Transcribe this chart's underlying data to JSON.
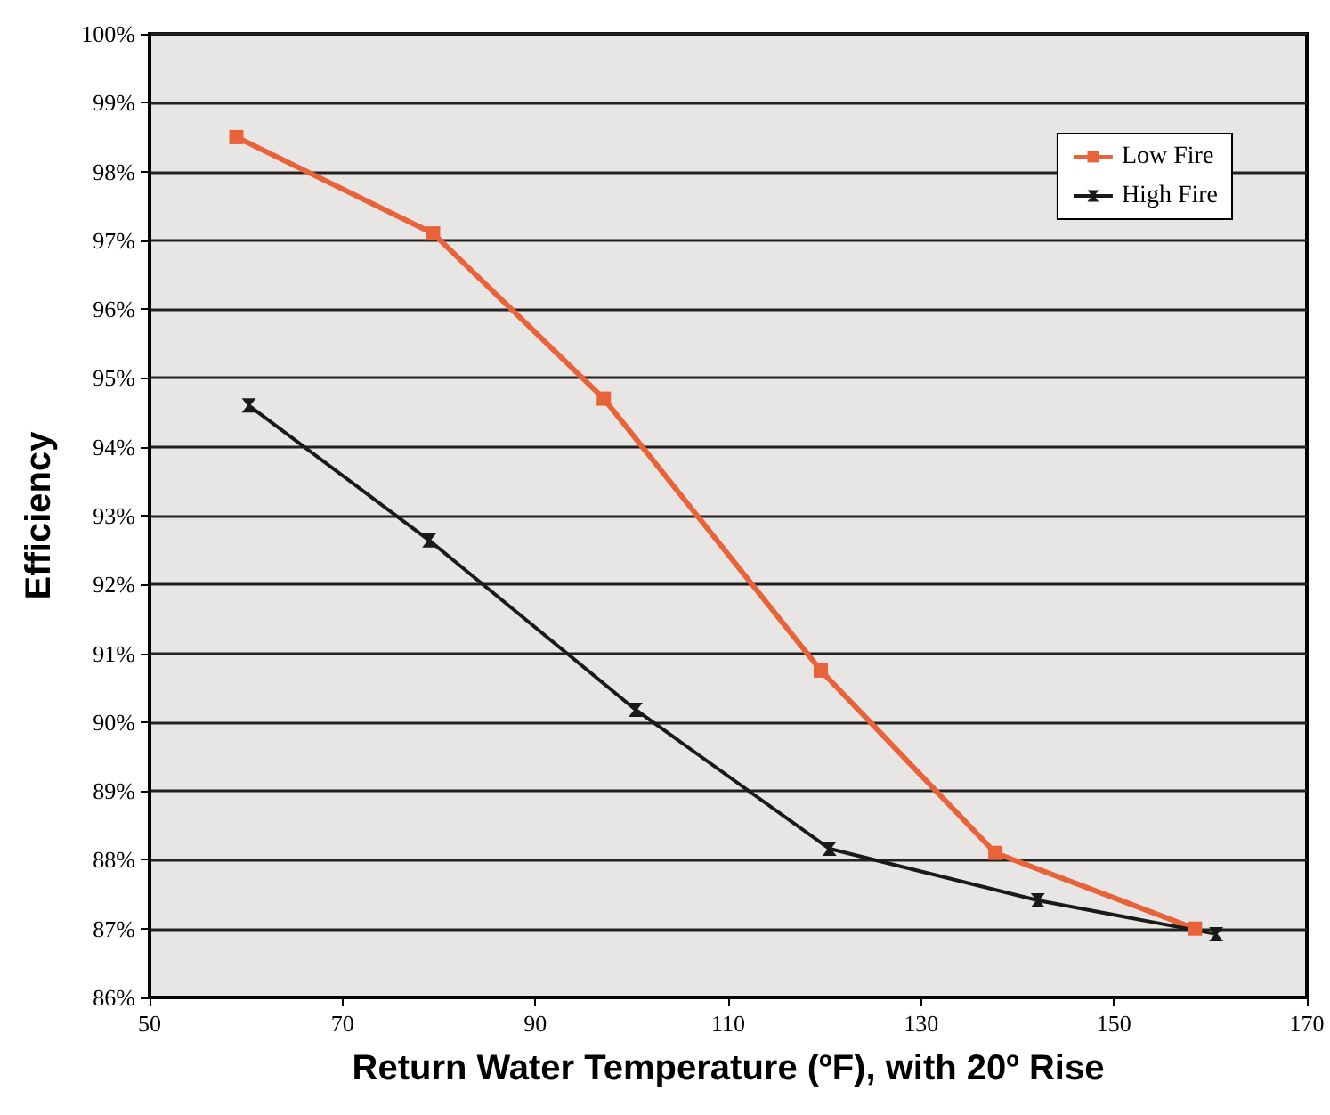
{
  "chart_data": {
    "type": "line",
    "xlabel": "Return Water Temperature (ºF), with 20º Rise",
    "ylabel": "Efficiency",
    "xlim": [
      50,
      170
    ],
    "xticks": [
      50,
      70,
      90,
      110,
      130,
      150,
      170
    ],
    "ylim": [
      86,
      100
    ],
    "yticks": [
      {
        "value": 86,
        "label": "86%"
      },
      {
        "value": 87,
        "label": "87%"
      },
      {
        "value": 88,
        "label": "88%"
      },
      {
        "value": 89,
        "label": "89%"
      },
      {
        "value": 90,
        "label": "90%"
      },
      {
        "value": 91,
        "label": "91%"
      },
      {
        "value": 92,
        "label": "92%"
      },
      {
        "value": 93,
        "label": "93%"
      },
      {
        "value": 94,
        "label": "94%"
      },
      {
        "value": 95,
        "label": "95%"
      },
      {
        "value": 96,
        "label": "96%"
      },
      {
        "value": 97,
        "label": "97%"
      },
      {
        "value": 98,
        "label": "98%"
      },
      {
        "value": 99,
        "label": "99%"
      },
      {
        "value": 100,
        "label": "100%"
      }
    ],
    "grid": "y",
    "legend": "top right",
    "line_style": "solid",
    "series": [
      {
        "name": "Low Fire",
        "color": "#e8623a",
        "marker": "square",
        "x": [
          59,
          79.4,
          97.1,
          119.6,
          137.7,
          158.4
        ],
        "values": [
          98.5,
          97.1,
          94.7,
          90.75,
          88.1,
          87.0
        ]
      },
      {
        "name": "High Fire",
        "color": "#1a1a1a",
        "marker": "cross",
        "x": [
          60.3,
          79,
          100.4,
          120.5,
          142.1,
          160.6
        ],
        "values": [
          94.6,
          92.64,
          90.18,
          88.16,
          87.41,
          86.92
        ]
      }
    ]
  }
}
